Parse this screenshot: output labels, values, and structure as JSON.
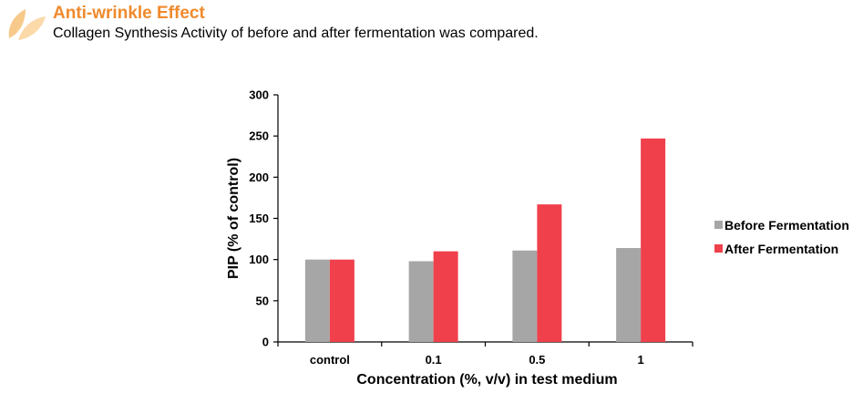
{
  "header": {
    "title": "Anti-wrinkle Effect",
    "subtitle": "Collagen Synthesis Activity of before and after fermentation was compared."
  },
  "chart_data": {
    "type": "bar",
    "title": "",
    "categories": [
      "control",
      "0.1",
      "0.5",
      "1"
    ],
    "series": [
      {
        "name": "Before Fermentation",
        "color": "#a6a6a6",
        "values": [
          100,
          98,
          111,
          114
        ]
      },
      {
        "name": "After Fermentation",
        "color": "#f0404c",
        "values": [
          100,
          110,
          167,
          247
        ]
      }
    ],
    "xlabel": "Concentration (%, v/v) in test medium",
    "ylabel": "PIP (% of control)",
    "ylim": [
      0,
      300
    ],
    "yticks": [
      0,
      50,
      100,
      150,
      200,
      250,
      300
    ],
    "grid": false,
    "legend": "right"
  },
  "colors": {
    "accent": "#f08a2c",
    "leaf": "#f7c98a"
  }
}
